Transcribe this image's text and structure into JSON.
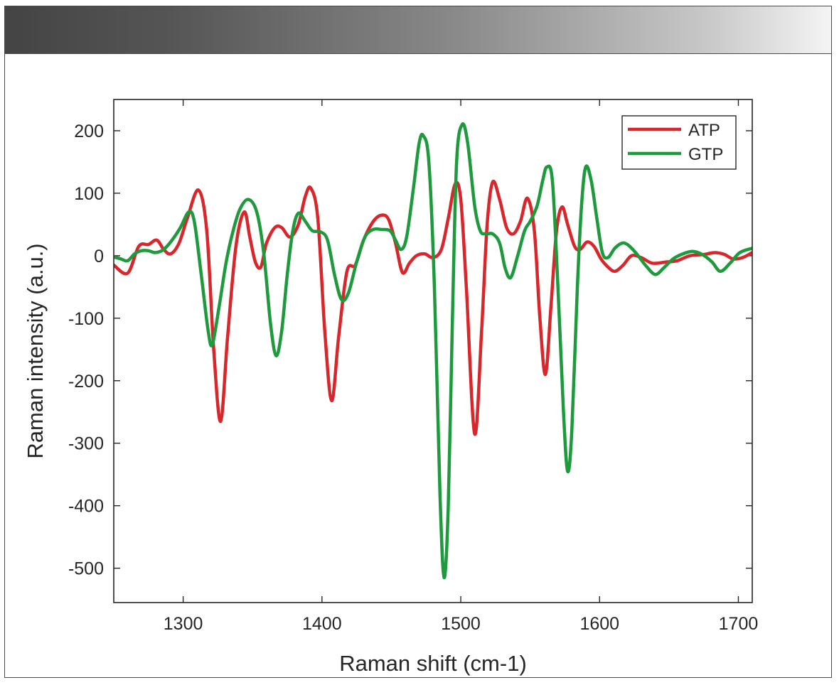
{
  "chart_data": {
    "type": "line",
    "title": "",
    "xlabel": "Raman shift (cm-1)",
    "ylabel": "Raman intensity (a.u.)",
    "xlim": [
      1250,
      1710
    ],
    "ylim": [
      -555,
      250
    ],
    "xticks": [
      1300,
      1400,
      1500,
      1600,
      1700
    ],
    "yticks": [
      200,
      100,
      0,
      -100,
      -200,
      -300,
      -400,
      -500
    ],
    "grid": false,
    "legend_position": "top-right",
    "series": [
      {
        "name": "ATP",
        "color": "#d9262b",
        "points": [
          [
            1250,
            -15
          ],
          [
            1260,
            -28
          ],
          [
            1268,
            15
          ],
          [
            1275,
            18
          ],
          [
            1281,
            25
          ],
          [
            1286,
            10
          ],
          [
            1291,
            3
          ],
          [
            1297,
            20
          ],
          [
            1303,
            60
          ],
          [
            1311,
            105
          ],
          [
            1317,
            40
          ],
          [
            1322,
            -150
          ],
          [
            1327,
            -265
          ],
          [
            1332,
            -130
          ],
          [
            1338,
            15
          ],
          [
            1344,
            70
          ],
          [
            1348,
            30
          ],
          [
            1352,
            -10
          ],
          [
            1356,
            -18
          ],
          [
            1360,
            20
          ],
          [
            1366,
            45
          ],
          [
            1371,
            45
          ],
          [
            1377,
            30
          ],
          [
            1383,
            50
          ],
          [
            1388,
            95
          ],
          [
            1392,
            108
          ],
          [
            1397,
            60
          ],
          [
            1402,
            -120
          ],
          [
            1407,
            -232
          ],
          [
            1412,
            -130
          ],
          [
            1418,
            -25
          ],
          [
            1424,
            -15
          ],
          [
            1430,
            25
          ],
          [
            1437,
            55
          ],
          [
            1443,
            65
          ],
          [
            1448,
            58
          ],
          [
            1453,
            20
          ],
          [
            1458,
            -27
          ],
          [
            1463,
            -12
          ],
          [
            1468,
            0
          ],
          [
            1474,
            3
          ],
          [
            1480,
            -3
          ],
          [
            1486,
            10
          ],
          [
            1491,
            60
          ],
          [
            1496,
            115
          ],
          [
            1500,
            90
          ],
          [
            1504,
            -50
          ],
          [
            1510,
            -285
          ],
          [
            1515,
            -120
          ],
          [
            1519,
            50
          ],
          [
            1523,
            118
          ],
          [
            1528,
            90
          ],
          [
            1533,
            45
          ],
          [
            1538,
            35
          ],
          [
            1543,
            55
          ],
          [
            1548,
            92
          ],
          [
            1553,
            40
          ],
          [
            1557,
            -100
          ],
          [
            1561,
            -190
          ],
          [
            1565,
            -80
          ],
          [
            1569,
            40
          ],
          [
            1573,
            78
          ],
          [
            1577,
            50
          ],
          [
            1582,
            15
          ],
          [
            1586,
            10
          ],
          [
            1591,
            22
          ],
          [
            1596,
            15
          ],
          [
            1601,
            -5
          ],
          [
            1606,
            -18
          ],
          [
            1611,
            -25
          ],
          [
            1617,
            -15
          ],
          [
            1623,
            0
          ],
          [
            1630,
            -3
          ],
          [
            1638,
            -12
          ],
          [
            1648,
            -10
          ],
          [
            1656,
            -8
          ],
          [
            1665,
            0
          ],
          [
            1675,
            2
          ],
          [
            1683,
            5
          ],
          [
            1690,
            2
          ],
          [
            1696,
            -5
          ],
          [
            1703,
            -3
          ],
          [
            1710,
            5
          ]
        ]
      },
      {
        "name": "GTP",
        "color": "#1d9a3c",
        "points": [
          [
            1250,
            -2
          ],
          [
            1255,
            -5
          ],
          [
            1260,
            -8
          ],
          [
            1265,
            3
          ],
          [
            1270,
            8
          ],
          [
            1275,
            8
          ],
          [
            1280,
            5
          ],
          [
            1286,
            10
          ],
          [
            1292,
            25
          ],
          [
            1298,
            45
          ],
          [
            1304,
            70
          ],
          [
            1308,
            55
          ],
          [
            1313,
            -30
          ],
          [
            1318,
            -120
          ],
          [
            1321,
            -142
          ],
          [
            1326,
            -80
          ],
          [
            1331,
            -10
          ],
          [
            1336,
            40
          ],
          [
            1341,
            75
          ],
          [
            1347,
            90
          ],
          [
            1353,
            70
          ],
          [
            1358,
            5
          ],
          [
            1363,
            -110
          ],
          [
            1367,
            -160
          ],
          [
            1371,
            -120
          ],
          [
            1375,
            -30
          ],
          [
            1379,
            40
          ],
          [
            1383,
            68
          ],
          [
            1388,
            55
          ],
          [
            1393,
            40
          ],
          [
            1399,
            38
          ],
          [
            1404,
            25
          ],
          [
            1409,
            -30
          ],
          [
            1414,
            -70
          ],
          [
            1419,
            -60
          ],
          [
            1425,
            -10
          ],
          [
            1431,
            30
          ],
          [
            1437,
            42
          ],
          [
            1443,
            42
          ],
          [
            1449,
            40
          ],
          [
            1453,
            25
          ],
          [
            1457,
            10
          ],
          [
            1461,
            30
          ],
          [
            1466,
            110
          ],
          [
            1470,
            180
          ],
          [
            1473,
            192
          ],
          [
            1477,
            150
          ],
          [
            1481,
            -50
          ],
          [
            1485,
            -380
          ],
          [
            1488,
            -515
          ],
          [
            1491,
            -400
          ],
          [
            1494,
            -100
          ],
          [
            1497,
            150
          ],
          [
            1501,
            210
          ],
          [
            1505,
            180
          ],
          [
            1510,
            80
          ],
          [
            1514,
            40
          ],
          [
            1518,
            35
          ],
          [
            1523,
            35
          ],
          [
            1528,
            20
          ],
          [
            1532,
            -20
          ],
          [
            1536,
            -35
          ],
          [
            1541,
            0
          ],
          [
            1546,
            40
          ],
          [
            1550,
            55
          ],
          [
            1555,
            80
          ],
          [
            1559,
            120
          ],
          [
            1562,
            142
          ],
          [
            1566,
            120
          ],
          [
            1570,
            -50
          ],
          [
            1574,
            -250
          ],
          [
            1577,
            -345
          ],
          [
            1580,
            -280
          ],
          [
            1584,
            -50
          ],
          [
            1587,
            80
          ],
          [
            1590,
            142
          ],
          [
            1594,
            120
          ],
          [
            1598,
            60
          ],
          [
            1602,
            5
          ],
          [
            1606,
            -3
          ],
          [
            1611,
            12
          ],
          [
            1616,
            20
          ],
          [
            1620,
            18
          ],
          [
            1626,
            5
          ],
          [
            1633,
            -15
          ],
          [
            1640,
            -30
          ],
          [
            1646,
            -20
          ],
          [
            1653,
            -5
          ],
          [
            1660,
            3
          ],
          [
            1667,
            7
          ],
          [
            1674,
            2
          ],
          [
            1681,
            -10
          ],
          [
            1687,
            -25
          ],
          [
            1694,
            -12
          ],
          [
            1701,
            5
          ],
          [
            1710,
            12
          ]
        ]
      }
    ]
  }
}
